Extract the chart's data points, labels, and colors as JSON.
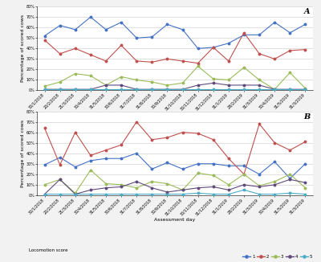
{
  "x_labels": [
    "30/1/2018",
    "20/2/2018",
    "21/3/2018",
    "30/4/2018",
    "31/5/2018",
    "30/6/2018",
    "31/7/2018",
    "31/8/2018",
    "30/9/2018",
    "31/10/2018",
    "30/11/2018",
    "31/12/2018",
    "31/1/2019",
    "28/2/2019",
    "31/3/2019",
    "30/4/2019",
    "31/5/2019",
    "31/3/2019"
  ],
  "A": {
    "score1": [
      52,
      62,
      58,
      70,
      58,
      65,
      50,
      51,
      63,
      58,
      40,
      41,
      45,
      53,
      53,
      65,
      55,
      63
    ],
    "score2": [
      48,
      35,
      40,
      34,
      28,
      43,
      28,
      27,
      30,
      28,
      26,
      41,
      28,
      55,
      35,
      30,
      38,
      39
    ],
    "score3": [
      4,
      8,
      16,
      14,
      5,
      13,
      10,
      8,
      5,
      7,
      23,
      11,
      10,
      22,
      10,
      1,
      17,
      2
    ],
    "score4": [
      1,
      1,
      1,
      1,
      5,
      5,
      1,
      1,
      1,
      1,
      5,
      7,
      5,
      5,
      5,
      1,
      1,
      1
    ],
    "score5": [
      1,
      1,
      1,
      1,
      1,
      1,
      1,
      1,
      1,
      1,
      1,
      1,
      1,
      1,
      1,
      1,
      1,
      1
    ]
  },
  "B": {
    "score1": [
      29,
      36,
      27,
      33,
      35,
      35,
      40,
      25,
      31,
      25,
      30,
      30,
      28,
      28,
      20,
      32,
      16,
      30
    ],
    "score2": [
      64,
      29,
      60,
      38,
      43,
      48,
      70,
      53,
      55,
      60,
      59,
      53,
      35,
      20,
      68,
      50,
      43,
      51
    ],
    "score3": [
      10,
      15,
      2,
      24,
      11,
      10,
      7,
      13,
      11,
      5,
      21,
      19,
      10,
      20,
      9,
      13,
      20,
      7
    ],
    "score4": [
      1,
      15,
      1,
      5,
      7,
      8,
      13,
      7,
      3,
      5,
      7,
      8,
      5,
      10,
      8,
      10,
      15,
      12
    ],
    "score5": [
      1,
      1,
      1,
      1,
      1,
      1,
      1,
      1,
      1,
      1,
      2,
      1,
      1,
      5,
      1,
      1,
      2,
      1
    ]
  },
  "colors": {
    "score1": "#4472c4",
    "score2": "#c0504d",
    "score3": "#9bbb59",
    "score4": "#604a7b",
    "score5": "#4bacc6"
  },
  "ylim": [
    0,
    80
  ],
  "ytick_vals": [
    0,
    10,
    20,
    30,
    40,
    50,
    60,
    70,
    80
  ],
  "ytick_labels": [
    "0%",
    "10%",
    "20%",
    "30%",
    "40%",
    "50%",
    "60%",
    "70%",
    "80%"
  ],
  "ylabel": "Percentage of scored cows",
  "xlabel": "Assessment day",
  "legend_title": "Locomotion score",
  "legend_entries": [
    "1",
    "2",
    "3",
    "4",
    "5"
  ],
  "bg_color": "#f2f2f2",
  "plot_bg": "#ffffff",
  "label_A": "A",
  "label_B": "B",
  "lw": 0.8,
  "ms": 1.8,
  "tick_fontsize": 3.5,
  "label_fontsize": 4.5,
  "panel_fontsize": 7
}
